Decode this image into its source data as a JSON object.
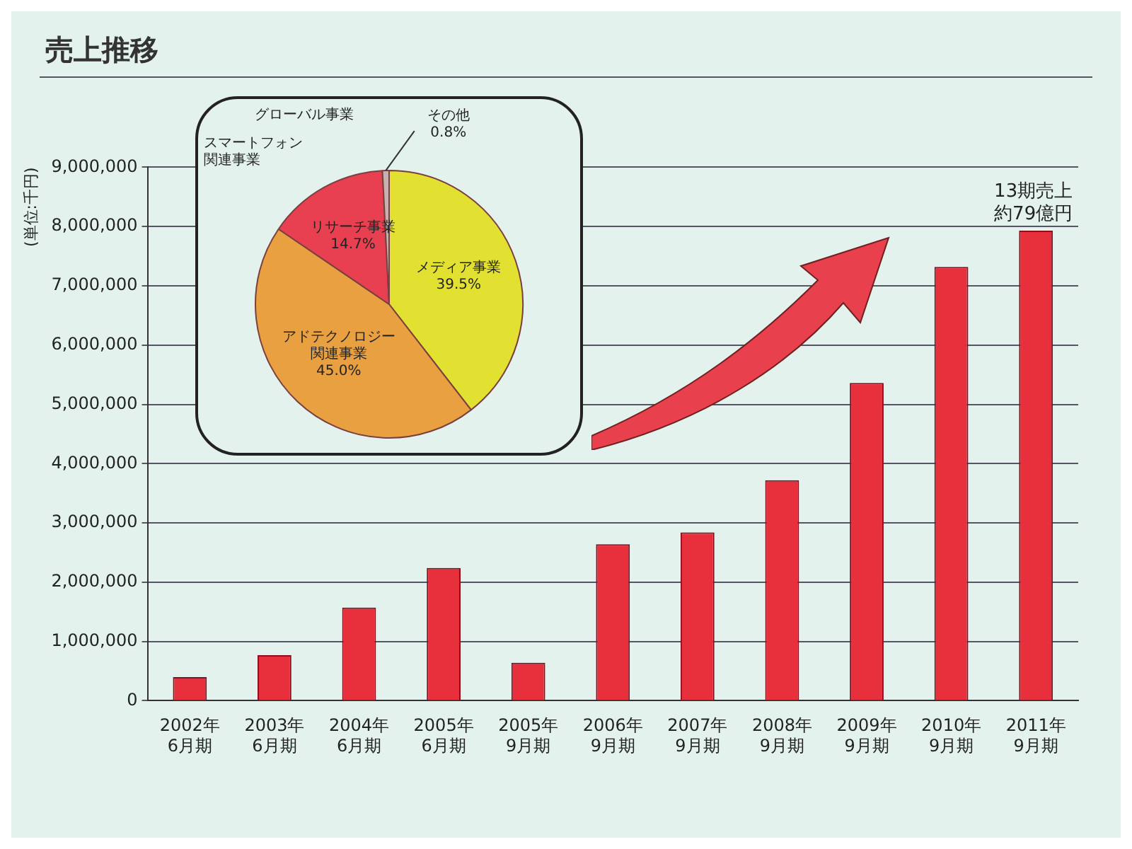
{
  "chart_data": [
    {
      "type": "bar",
      "title": "売上推移",
      "ylabel": "(単位:千円)",
      "categories": [
        "2002年6月期",
        "2003年6月期",
        "2004年6月期",
        "2005年6月期",
        "2005年9月期",
        "2006年9月期",
        "2007年9月期",
        "2008年9月期",
        "2009年9月期",
        "2010年9月期",
        "2011年9月期"
      ],
      "values": [
        400000,
        770000,
        1570000,
        2240000,
        640000,
        2640000,
        2840000,
        3720000,
        5360000,
        7320000,
        7930000
      ],
      "color": "#e8303c",
      "ylim": [
        0,
        9000000
      ],
      "yticks": [
        0,
        {
          "value": 1000000,
          "label": "1,000,000"
        },
        {
          "value": 2000000,
          "label": "2,000,000"
        },
        {
          "value": 3000000,
          "label": "3,000,000"
        },
        {
          "value": 4000000,
          "label": "4,000,000"
        },
        {
          "value": 5000000,
          "label": "5,000,000"
        },
        {
          "value": 6000000,
          "label": "6,000,000"
        },
        {
          "value": 7000000,
          "label": "7,000,000"
        },
        {
          "value": 8000000,
          "label": "8,000,000"
        },
        {
          "value": 9000000,
          "label": "9,000,000"
        }
      ],
      "grid": "y",
      "annotations": [
        {
          "text": "13期売上約79億円",
          "x": "2011年9月期",
          "y": 7930000
        }
      ]
    },
    {
      "type": "pie",
      "categories": [
        "メディア事業",
        "アドテクノロジー関連事業",
        "リサーチ事業",
        "その他"
      ],
      "values": [
        39.5,
        45.0,
        14.7,
        0.8
      ],
      "value_labels": [
        "39.5%",
        "45.0%",
        "14.7%",
        "0.8%"
      ],
      "colors": [
        "#e2e030",
        "#e8a040",
        "#e84050",
        "#c8b0b0"
      ],
      "annotations": [
        "グローバル事業",
        "スマートフォン関連事業"
      ]
    }
  ]
}
